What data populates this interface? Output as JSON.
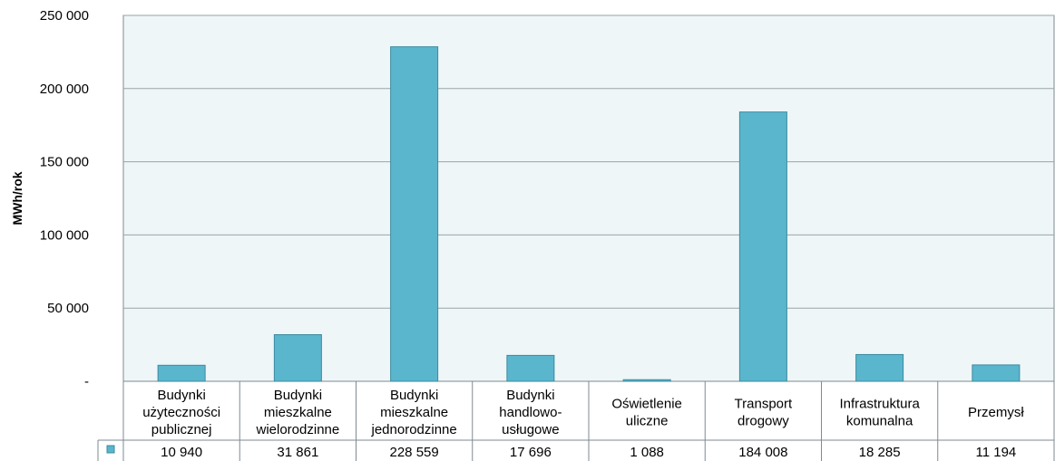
{
  "chart_data": {
    "type": "bar",
    "ylabel": "MWh/rok",
    "ylim": [
      0,
      250000
    ],
    "yticks": [
      "-",
      "50 000",
      "100 000",
      "150 000",
      "200 000",
      "250 000"
    ],
    "categories": [
      "Budynki użyteczności publicznej",
      "Budynki mieszkalne wielorodzinne",
      "Budynki mieszkalne jednorodzinne",
      "Budynki handlowo-usługowe",
      "Oświetlenie uliczne",
      "Transport drogowy",
      "Infrastruktura komunalna",
      "Przemysł"
    ],
    "category_lines": [
      [
        "Budynki",
        "użyteczności",
        "publicznej"
      ],
      [
        "Budynki",
        "mieszkalne",
        "wielorodzinne"
      ],
      [
        "Budynki",
        "mieszkalne",
        "jednorodzinne"
      ],
      [
        "Budynki",
        "handlowo-",
        "usługowe"
      ],
      [
        "Oświetlenie",
        "uliczne"
      ],
      [
        "Transport",
        "drogowy"
      ],
      [
        "Infrastruktura",
        "komunalna"
      ],
      [
        "Przemysł"
      ]
    ],
    "values": [
      10940,
      31861,
      228559,
      17696,
      1088,
      184008,
      18285,
      11194
    ],
    "value_labels": [
      "10 940",
      "31 861",
      "228 559",
      "17 696",
      "1 088",
      "184 008",
      "18 285",
      "11 194"
    ],
    "grid": true,
    "data_table": true,
    "colors": {
      "bar": "#5ab6cc",
      "bar_border": "#3d8aa0",
      "plot_bg": "#eef6f8",
      "grid": "#9aa3a8",
      "border": "#7f8a90"
    }
  }
}
